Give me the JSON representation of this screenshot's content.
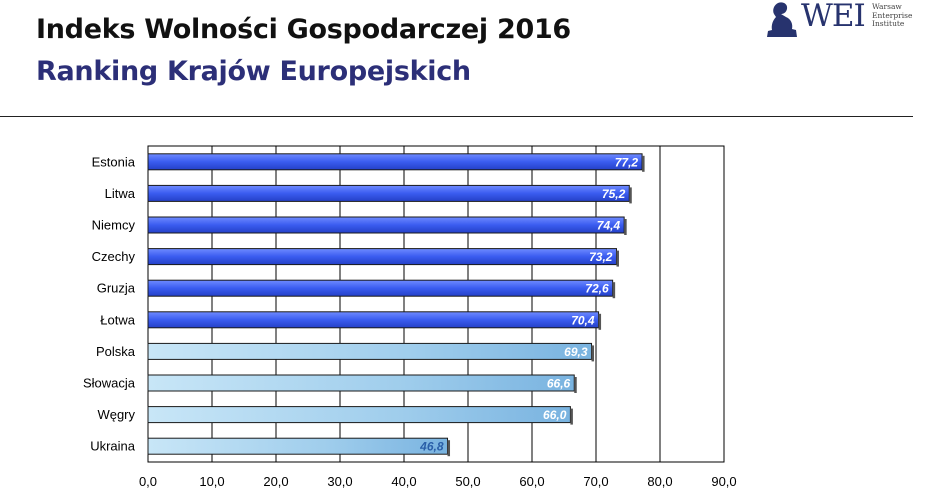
{
  "header": {
    "title": "Indeks Wolności Gospodarczej 2016",
    "subtitle": "Ranking Krajów Europejskich"
  },
  "logo": {
    "name": "WEI",
    "lines": [
      "Warsaw",
      "Enterprise",
      "Institute"
    ],
    "color": "#27336e"
  },
  "colors": {
    "highlight_bar": "#3a5cf0",
    "other_bar": "#a9d4ee",
    "highlight_label": "#ffffff",
    "outside_label": "#2a5fa8"
  },
  "chart_data": {
    "type": "bar",
    "orientation": "horizontal",
    "categories": [
      "Estonia",
      "Litwa",
      "Niemcy",
      "Czechy",
      "Gruzja",
      "Łotwa",
      "Polska",
      "Słowacja",
      "Węgry",
      "Ukraina"
    ],
    "values": [
      77.2,
      75.2,
      74.4,
      73.2,
      72.6,
      70.4,
      69.3,
      66.6,
      66.0,
      46.8
    ],
    "value_labels": [
      "77,2",
      "75,2",
      "74,4",
      "73,2",
      "72,6",
      "70,4",
      "69,3",
      "66,6",
      "66,0",
      "46,8"
    ],
    "highlighted": [
      true,
      true,
      true,
      true,
      true,
      true,
      false,
      false,
      false,
      false
    ],
    "xlim": [
      0,
      90
    ],
    "xticks": [
      0,
      10,
      20,
      30,
      40,
      50,
      60,
      70,
      80,
      90
    ],
    "xtick_labels": [
      "0,0",
      "10,0",
      "20,0",
      "30,0",
      "40,0",
      "50,0",
      "60,0",
      "70,0",
      "80,0",
      "90,0"
    ],
    "grid": true,
    "legend": "none"
  }
}
